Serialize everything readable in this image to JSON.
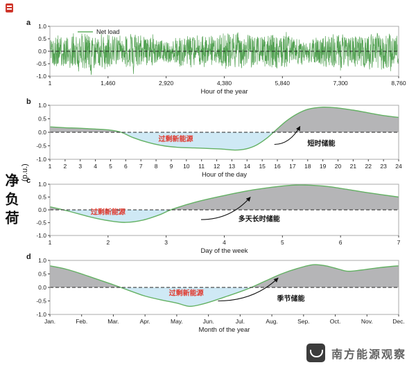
{
  "axis_label": {
    "text": "净负荷",
    "unit": "(p.u.)"
  },
  "watermark": {
    "text": "南方能源观察"
  },
  "colors": {
    "curve_green": "#63b163",
    "noise_green": "#4b9d4b",
    "fill_gray": "#b5b5b7",
    "fill_blue": "#cfe9f5",
    "annotation_red": "#e03a2f",
    "frame": "#aaaaaa",
    "text": "#1a1a1a"
  },
  "chart_data": [
    {
      "id": "a",
      "panel_letter": "a",
      "type": "line",
      "xlabel": "Hour of the year",
      "xlim": [
        1,
        8760
      ],
      "xticks": [
        {
          "v": 1,
          "label": "1"
        },
        {
          "v": 1460,
          "label": "1,460"
        },
        {
          "v": 2920,
          "label": "2,920"
        },
        {
          "v": 4380,
          "label": "4,380"
        },
        {
          "v": 5840,
          "label": "5,840"
        },
        {
          "v": 7300,
          "label": "7,300"
        },
        {
          "v": 8760,
          "label": "8,760"
        }
      ],
      "ylim": [
        -1,
        1
      ],
      "yticks": [
        "1.0",
        "0.5",
        "0.0",
        "-0.5",
        "-1.0"
      ],
      "legend": {
        "label": "Net load"
      },
      "series": [
        {
          "name": "Net load",
          "style": "noise",
          "seed": 11,
          "n": 1500,
          "base_amp": 0.34,
          "amp_var": 0.2,
          "note": "high-frequency net-load signal oscillating about 0, envelope roughly ±0.4 to ±0.9 p.u."
        }
      ],
      "zero_line": true
    },
    {
      "id": "b",
      "panel_letter": "b",
      "type": "area",
      "xlabel": "Hour of the day",
      "xlim": [
        1,
        24
      ],
      "xticks": [
        1,
        2,
        3,
        4,
        5,
        6,
        7,
        8,
        9,
        10,
        11,
        12,
        13,
        14,
        15,
        16,
        17,
        18,
        19,
        20,
        21,
        22,
        23,
        24
      ],
      "ylim": [
        -1,
        1
      ],
      "yticks": [
        "1.0",
        "0.5",
        "0.0",
        "-0.5",
        "-1.0"
      ],
      "points": [
        [
          1,
          0.2
        ],
        [
          2,
          0.17
        ],
        [
          3,
          0.15
        ],
        [
          4,
          0.12
        ],
        [
          5,
          0.08
        ],
        [
          5.7,
          0
        ],
        [
          6.5,
          -0.2
        ],
        [
          7.5,
          -0.38
        ],
        [
          8.5,
          -0.5
        ],
        [
          9.5,
          -0.56
        ],
        [
          10.5,
          -0.58
        ],
        [
          11.5,
          -0.6
        ],
        [
          12.3,
          -0.62
        ],
        [
          13.2,
          -0.66
        ],
        [
          13.9,
          -0.62
        ],
        [
          14.6,
          -0.48
        ],
        [
          15.3,
          -0.22
        ],
        [
          15.9,
          0.08
        ],
        [
          16.6,
          0.42
        ],
        [
          17.3,
          0.68
        ],
        [
          18,
          0.85
        ],
        [
          19,
          0.93
        ],
        [
          20,
          0.9
        ],
        [
          21,
          0.82
        ],
        [
          22,
          0.72
        ],
        [
          23,
          0.62
        ],
        [
          24,
          0.55
        ]
      ],
      "annotations": [
        {
          "text": "过剩新能源",
          "x": 9.3,
          "y": -0.33,
          "color": "red"
        },
        {
          "text": "短时储能",
          "x": 18.9,
          "y": -0.5,
          "color": "black"
        }
      ],
      "arrow": {
        "from": [
          15.8,
          -0.45
        ],
        "to": [
          17.5,
          0.22
        ]
      },
      "zero_line": true
    },
    {
      "id": "c",
      "panel_letter": "c",
      "type": "area",
      "xlabel": "Day of the week",
      "xlim": [
        1,
        7
      ],
      "xticks": [
        1,
        2,
        3,
        4,
        5,
        6,
        7
      ],
      "ylim": [
        -1,
        1
      ],
      "yticks": [
        "1.0",
        "0.5",
        "0.0",
        "-0.5",
        "-1.0"
      ],
      "points": [
        [
          1,
          0.12
        ],
        [
          1.3,
          -0.04
        ],
        [
          1.7,
          -0.28
        ],
        [
          2,
          -0.42
        ],
        [
          2.3,
          -0.49
        ],
        [
          2.6,
          -0.4
        ],
        [
          2.9,
          -0.18
        ],
        [
          3.1,
          0.02
        ],
        [
          3.5,
          0.3
        ],
        [
          4,
          0.56
        ],
        [
          4.5,
          0.78
        ],
        [
          5,
          0.93
        ],
        [
          5.3,
          0.97
        ],
        [
          5.7,
          0.93
        ],
        [
          6,
          0.84
        ],
        [
          6.5,
          0.66
        ],
        [
          7,
          0.5
        ]
      ],
      "annotations": [
        {
          "text": "过剩新能源",
          "x": 2.0,
          "y": -0.18,
          "color": "red"
        },
        {
          "text": "多天长时储能",
          "x": 4.6,
          "y": -0.45,
          "color": "black"
        }
      ],
      "arrow": {
        "from": [
          3.6,
          -0.38
        ],
        "to": [
          4.45,
          0.5
        ]
      },
      "zero_line": true
    },
    {
      "id": "d",
      "panel_letter": "d",
      "type": "area",
      "xlabel": "Month of the year",
      "xlim": [
        1,
        12
      ],
      "xticks": [
        {
          "v": 1,
          "label": "Jan."
        },
        {
          "v": 2,
          "label": "Feb."
        },
        {
          "v": 3,
          "label": "Mar."
        },
        {
          "v": 4,
          "label": "Apr."
        },
        {
          "v": 5,
          "label": "May."
        },
        {
          "v": 6,
          "label": "Jun."
        },
        {
          "v": 7,
          "label": "Jul."
        },
        {
          "v": 8,
          "label": "Aug."
        },
        {
          "v": 9,
          "label": "Sep."
        },
        {
          "v": 10,
          "label": "Oct."
        },
        {
          "v": 11,
          "label": "Nov."
        },
        {
          "v": 12,
          "label": "Dec."
        }
      ],
      "ylim": [
        -1,
        1
      ],
      "yticks": [
        "1.0",
        "0.5",
        "0.0",
        "-0.5",
        "-1.0"
      ],
      "points": [
        [
          1,
          0.8
        ],
        [
          1.5,
          0.68
        ],
        [
          2,
          0.5
        ],
        [
          2.5,
          0.3
        ],
        [
          3,
          0.1
        ],
        [
          3.35,
          -0.05
        ],
        [
          3.7,
          -0.2
        ],
        [
          4,
          -0.32
        ],
        [
          4.5,
          -0.46
        ],
        [
          5,
          -0.58
        ],
        [
          5.4,
          -0.7
        ],
        [
          5.8,
          -0.62
        ],
        [
          6.2,
          -0.48
        ],
        [
          6.6,
          -0.32
        ],
        [
          7,
          -0.16
        ],
        [
          7.35,
          0
        ],
        [
          7.8,
          0.24
        ],
        [
          8.3,
          0.5
        ],
        [
          8.8,
          0.7
        ],
        [
          9.3,
          0.84
        ],
        [
          9.7,
          0.8
        ],
        [
          10.1,
          0.68
        ],
        [
          10.4,
          0.6
        ],
        [
          10.8,
          0.64
        ],
        [
          11.3,
          0.72
        ],
        [
          11.7,
          0.77
        ],
        [
          12,
          0.8
        ]
      ],
      "annotations": [
        {
          "text": "过剩新能源",
          "x": 5.3,
          "y": -0.3,
          "color": "red"
        },
        {
          "text": "季节储能",
          "x": 8.6,
          "y": -0.5,
          "color": "black"
        }
      ],
      "arrow": {
        "from": [
          6.3,
          -0.5
        ],
        "to": [
          8.2,
          0.35
        ]
      },
      "zero_line": true
    }
  ]
}
